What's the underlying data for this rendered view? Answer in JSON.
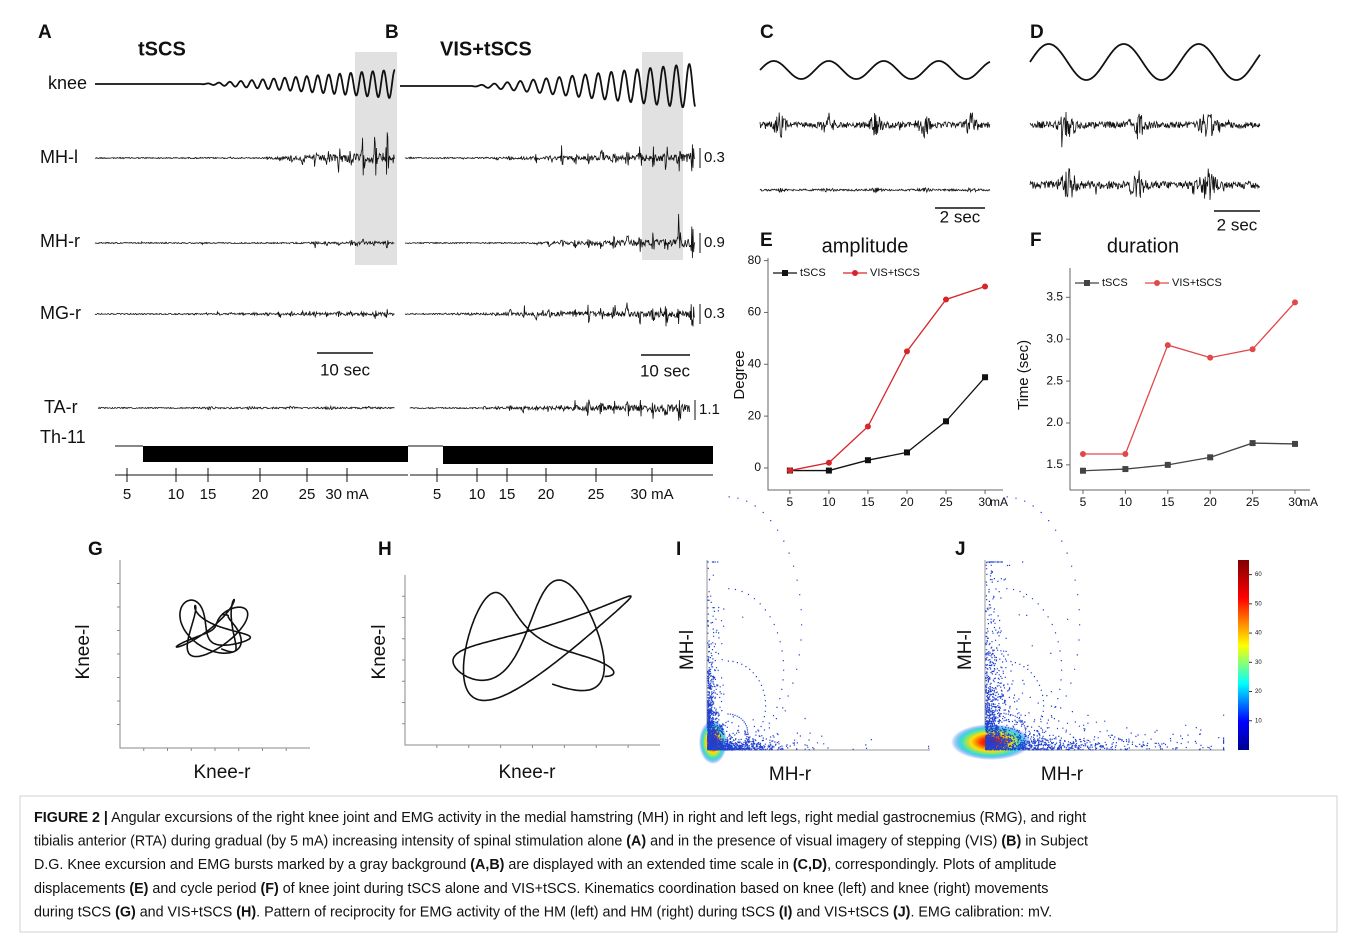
{
  "panel_labels": [
    "A",
    "B",
    "C",
    "D",
    "E",
    "F",
    "G",
    "H",
    "I",
    "J"
  ],
  "traces": {
    "title_a": "tSCS",
    "title_b": "VIS+tSCS",
    "labels": [
      "knee",
      "MH-l",
      "MH-r",
      "MG-r",
      "TA-r",
      "Th-11"
    ],
    "calibrations": [
      0.3,
      0.9,
      0.3,
      1.1
    ],
    "scale_bar_a": "10 sec",
    "scale_bar_b": "10 sec",
    "current_ticks_a": [
      5,
      10,
      15,
      20,
      25,
      "30 mA"
    ],
    "current_ticks_b": [
      5,
      10,
      15,
      20,
      25,
      "30 mA"
    ]
  },
  "panel_c": {
    "scale_bar": "2 sec"
  },
  "panel_d": {
    "scale_bar": "2 sec"
  },
  "chart_data": [
    {
      "type": "line",
      "title": "amplitude",
      "y_label": "Degree",
      "x_unit": "mA",
      "x": [
        5,
        10,
        15,
        20,
        25,
        30
      ],
      "xlim": [
        2.2,
        32.3
      ],
      "xticks": [
        5,
        10,
        15,
        20,
        25,
        30
      ],
      "ylim": [
        -8.5,
        81
      ],
      "yticks": [
        0,
        20,
        40,
        60,
        80
      ],
      "legend": "top-left",
      "series": [
        {
          "name": "tSCS",
          "color": "#111111",
          "marker": "square",
          "values": [
            -1,
            -1,
            3,
            6,
            18,
            35
          ]
        },
        {
          "name": "VIS+tSCS",
          "color": "#d7262a",
          "marker": "circle",
          "values": [
            -1,
            2,
            16,
            45,
            65,
            70
          ]
        }
      ]
    },
    {
      "type": "line",
      "title": "duration",
      "y_label": "Time (sec)",
      "x_unit": "mA",
      "x": [
        5,
        10,
        15,
        20,
        25,
        30
      ],
      "xlim": [
        3.47,
        31.77
      ],
      "xticks": [
        5,
        10,
        15,
        20,
        25,
        30
      ],
      "ylim": [
        1.2,
        3.85
      ],
      "yticks": [
        1.5,
        {
          "value": 2,
          "label": "2.0"
        },
        2.5,
        {
          "value": 3,
          "label": "3.0"
        },
        3.5
      ],
      "legend": "top-left",
      "series": [
        {
          "name": "tSCS",
          "color": "#444444",
          "marker": "square",
          "values": [
            1.43,
            1.45,
            1.5,
            1.59,
            1.76,
            1.75
          ]
        },
        {
          "name": "VIS+tSCS",
          "color": "#e0494a",
          "marker": "circle",
          "values": [
            1.63,
            1.63,
            2.93,
            2.78,
            2.88,
            3.44
          ]
        }
      ]
    }
  ],
  "phase_plots": {
    "g": {
      "y_label": "Knee-l",
      "x_label": "Knee-r"
    },
    "h": {
      "y_label": "Knee-l",
      "x_label": "Knee-r"
    },
    "i": {
      "y_label": "MH-l",
      "x_label": "MH-r"
    },
    "j": {
      "y_label": "MH-l",
      "x_label": "MH-r",
      "colorbar_ticks": [
        10,
        20,
        30,
        40,
        50,
        60
      ]
    }
  },
  "caption": {
    "lines": [
      [
        {
          "bold": "FIGURE 2 |"
        },
        " Angular excursions of the right knee joint and EMG activity in the medial hamstring (MH) in right and left legs, right medial gastrocnemius (RMG), and right"
      ],
      [
        "tibialis anterior (RTA) during gradual (by 5 mA) increasing intensity of spinal stimulation alone ",
        {
          "bold": "(A)"
        },
        " and in the presence of visual imagery of stepping (VIS) ",
        {
          "bold": "(B)"
        },
        " in Subject"
      ],
      [
        "D.G. Knee excursion and EMG bursts marked by a gray background ",
        {
          "bold": "(A,B)"
        },
        " are displayed with an extended time scale in ",
        {
          "bold": "(C,D)"
        },
        ", correspondingly. Plots of amplitude"
      ],
      [
        "displacements ",
        {
          "bold": "(E)"
        },
        " and cycle period ",
        {
          "bold": "(F)"
        },
        " of knee joint during tSCS alone and VIS+tSCS. Kinematics coordination based on knee (left) and knee (right) movements"
      ],
      [
        "during tSCS ",
        {
          "bold": "(G)"
        },
        " and VIS+tSCS ",
        {
          "bold": "(H)"
        },
        ". Pattern of reciprocity for EMG activity of the HM (left) and HM (right) during tSCS ",
        {
          "bold": "(I)"
        },
        " and VIS+tSCS ",
        {
          "bold": "(J)"
        },
        ". EMG calibration: mV."
      ]
    ]
  }
}
